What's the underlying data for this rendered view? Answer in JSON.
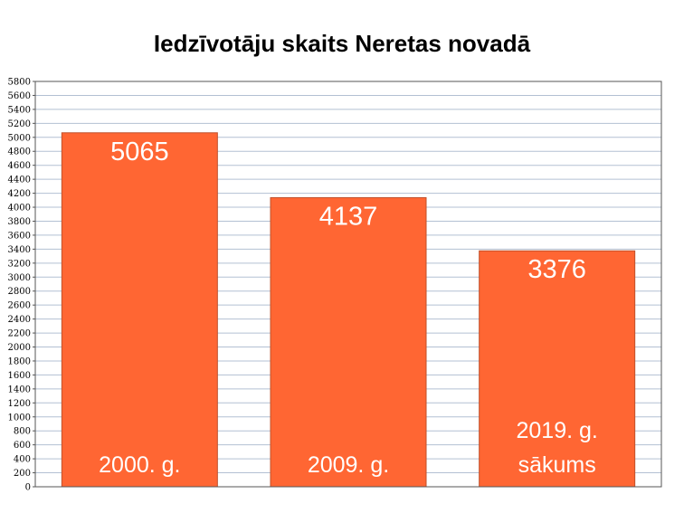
{
  "chart_data": {
    "type": "bar",
    "title": "Iedzīvotāju skaits Neretas novadā",
    "categories": [
      "2000. g.",
      "2009. g.",
      "2019. g. sākums"
    ],
    "category_lines": [
      [
        "2000. g."
      ],
      [
        "2009. g."
      ],
      [
        "2019. g.",
        "sākums"
      ]
    ],
    "values": [
      5065,
      4137,
      3376
    ],
    "ylim": [
      0,
      5800
    ],
    "ytick_step": 200,
    "grid": true,
    "bar_color": "#ff6633",
    "bar_border_color": "#c0502a",
    "grid_color": "#b3c0d3",
    "value_label_color": "#ffffff"
  }
}
